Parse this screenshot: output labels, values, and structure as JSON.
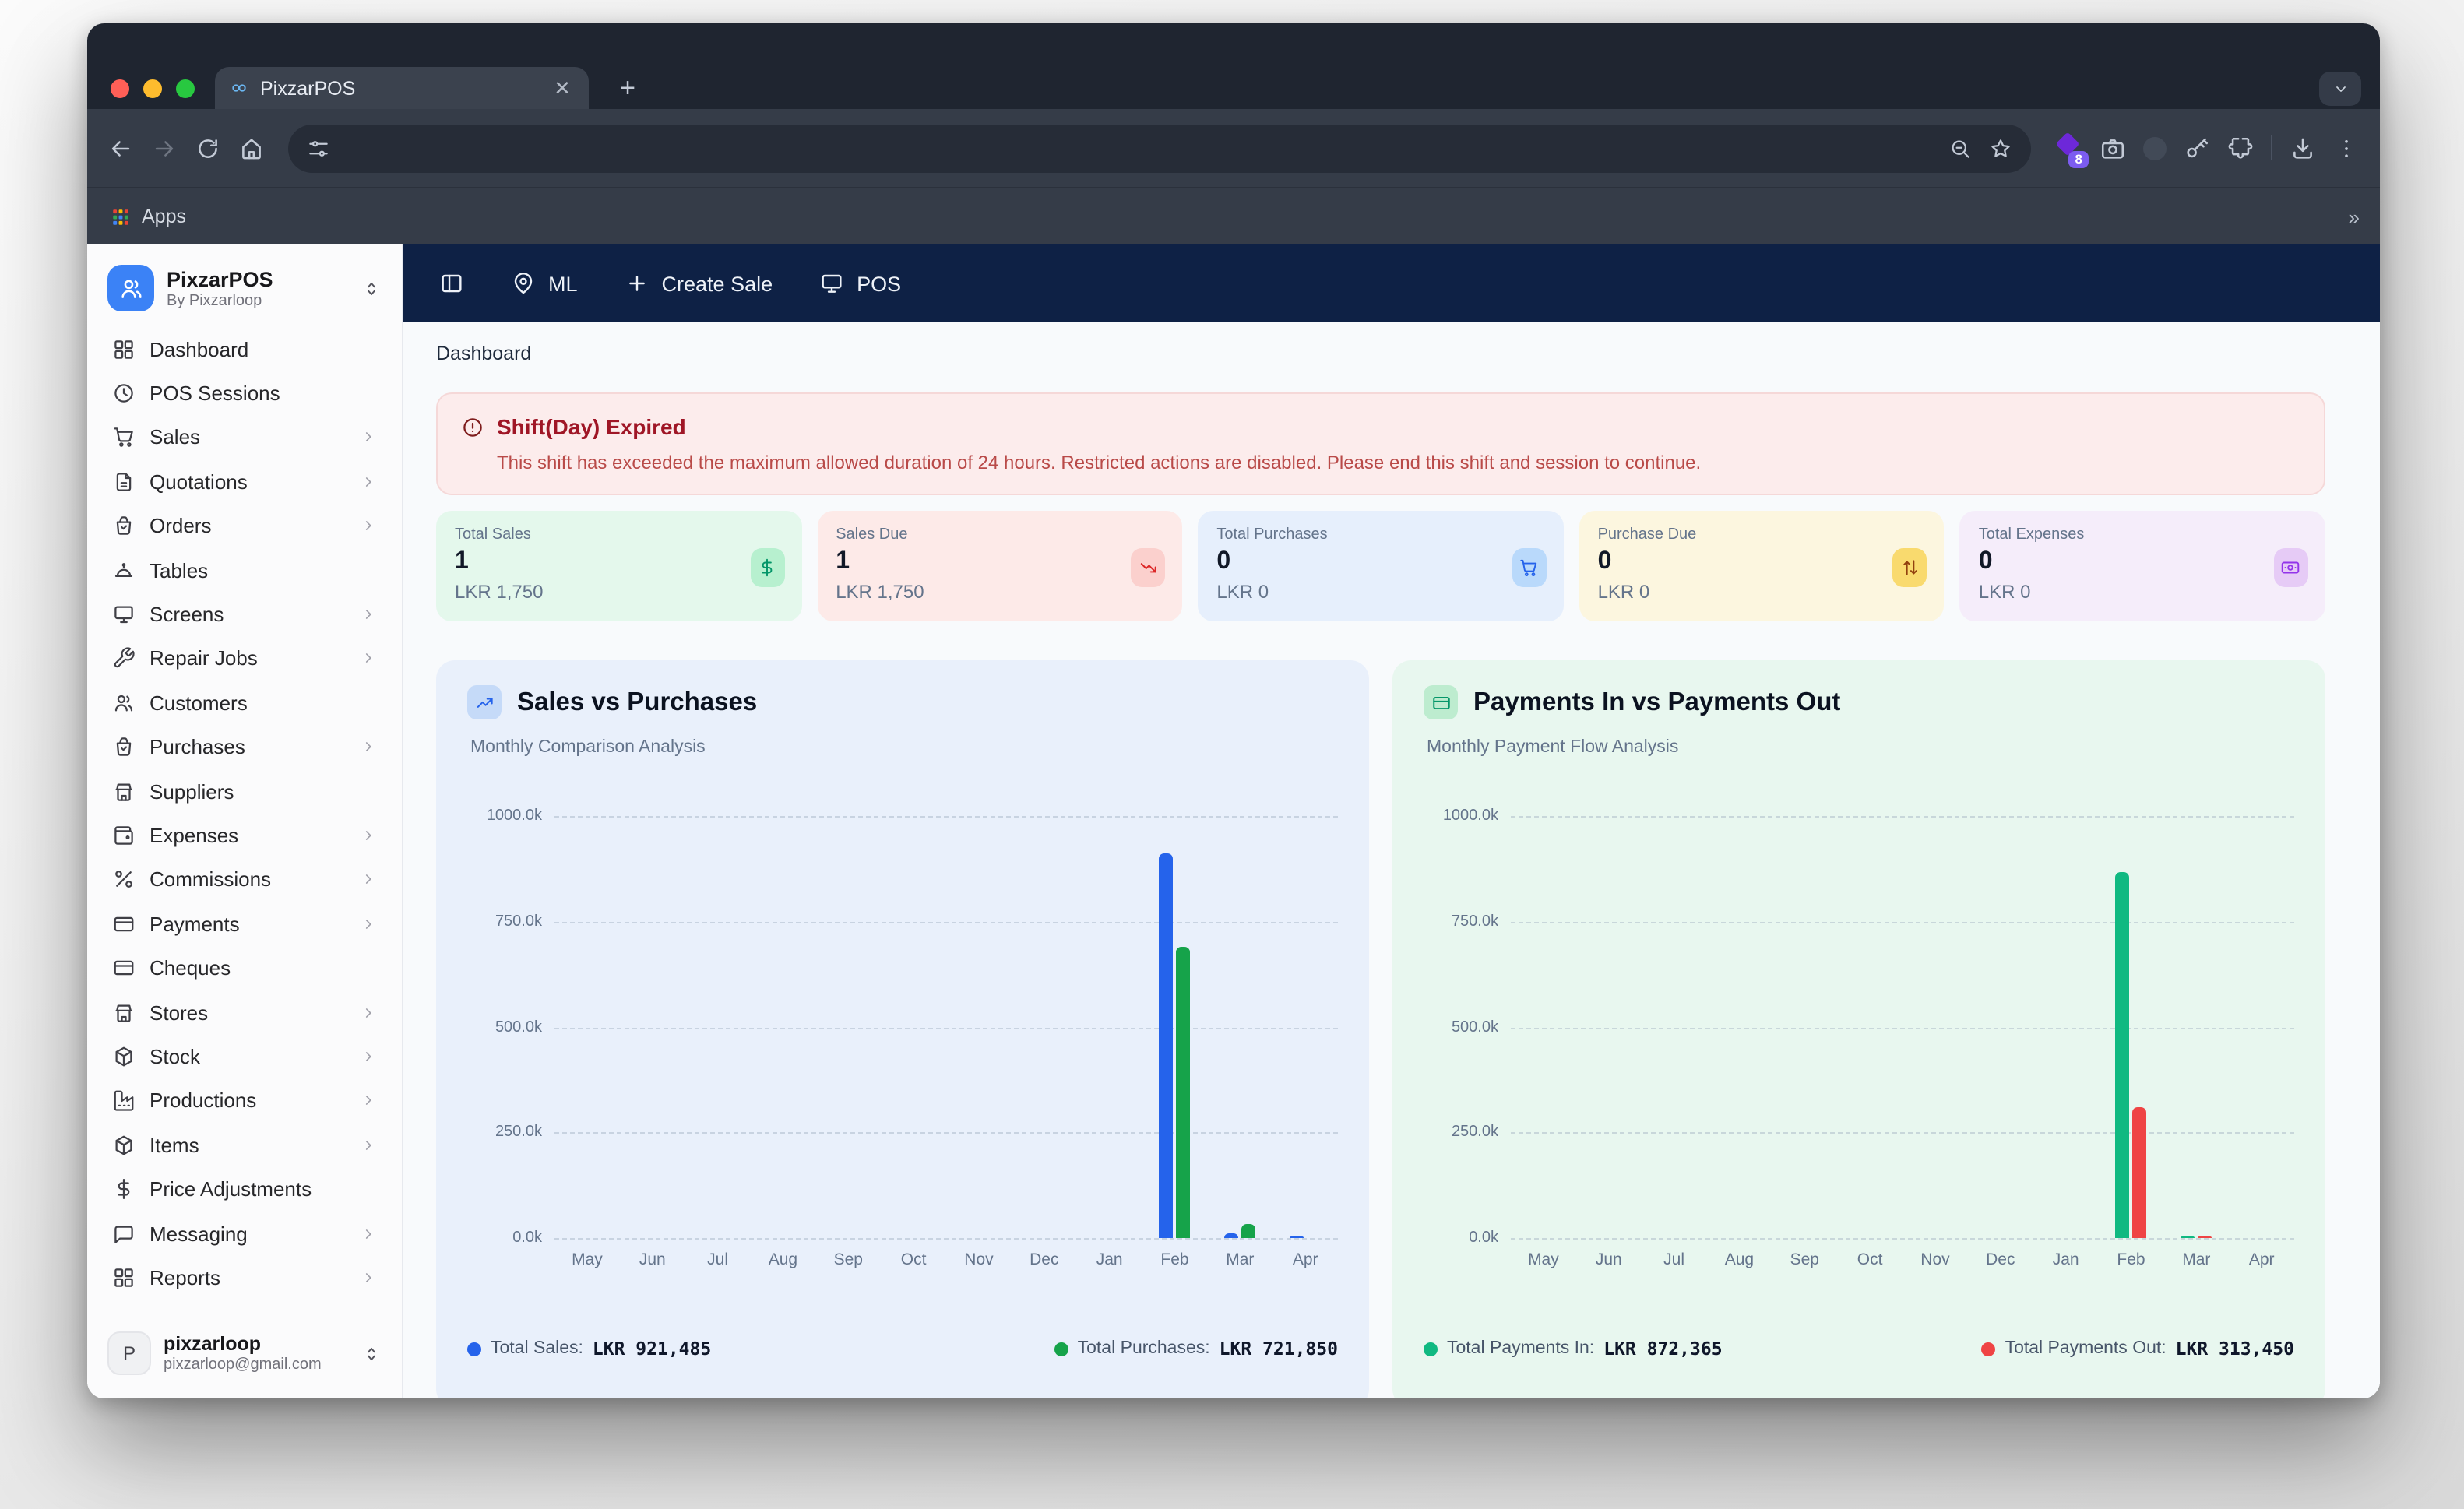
{
  "browser": {
    "tab_title": "PixzarPOS",
    "extension_badge": "8",
    "bookmarks_apps_label": "Apps"
  },
  "app": {
    "sidebar": {
      "brand": {
        "name": "PixzarPOS",
        "byline": "By Pixzarloop"
      },
      "items": [
        {
          "label": "Dashboard",
          "icon": "dashboard-icon",
          "chevron": false
        },
        {
          "label": "POS Sessions",
          "icon": "clock-icon",
          "chevron": false
        },
        {
          "label": "Sales",
          "icon": "cart-icon",
          "chevron": true
        },
        {
          "label": "Quotations",
          "icon": "document-icon",
          "chevron": true
        },
        {
          "label": "Orders",
          "icon": "bag-check-icon",
          "chevron": true
        },
        {
          "label": "Tables",
          "icon": "cloche-icon",
          "chevron": false
        },
        {
          "label": "Screens",
          "icon": "monitor-icon",
          "chevron": true
        },
        {
          "label": "Repair Jobs",
          "icon": "wrench-icon",
          "chevron": true
        },
        {
          "label": "Customers",
          "icon": "users-icon",
          "chevron": false
        },
        {
          "label": "Purchases",
          "icon": "bag-check-icon",
          "chevron": true
        },
        {
          "label": "Suppliers",
          "icon": "store-icon",
          "chevron": false
        },
        {
          "label": "Expenses",
          "icon": "wallet-icon",
          "chevron": true
        },
        {
          "label": "Commissions",
          "icon": "percent-icon",
          "chevron": true
        },
        {
          "label": "Payments",
          "icon": "card-icon",
          "chevron": true
        },
        {
          "label": "Cheques",
          "icon": "card-icon",
          "chevron": false
        },
        {
          "label": "Stores",
          "icon": "store-icon",
          "chevron": true
        },
        {
          "label": "Stock",
          "icon": "box-icon",
          "chevron": true
        },
        {
          "label": "Productions",
          "icon": "factory-icon",
          "chevron": true
        },
        {
          "label": "Items",
          "icon": "box-icon",
          "chevron": true
        },
        {
          "label": "Price Adjustments",
          "icon": "dollar-icon",
          "chevron": false
        },
        {
          "label": "Messaging",
          "icon": "chat-icon",
          "chevron": true
        },
        {
          "label": "Reports",
          "icon": "dashboard-icon",
          "chevron": true
        }
      ],
      "user": {
        "initial": "P",
        "name": "pixzarloop",
        "email": "pixzarloop@gmail.com"
      }
    },
    "navbar": {
      "location_label": "ML",
      "create_sale_label": "Create Sale",
      "pos_label": "POS"
    },
    "breadcrumb": "Dashboard",
    "alert": {
      "title": "Shift(Day) Expired",
      "message": "This shift has exceeded the maximum allowed duration of 24 hours. Restricted actions are disabled. Please end this shift and session to continue."
    },
    "stats": [
      {
        "label": "Total Sales",
        "value": "1",
        "amount": "LKR 1,750",
        "icon": "dollar-icon",
        "bg": "#e4f8ec",
        "badge_bg": "#b7f0cf",
        "icon_color": "#059669"
      },
      {
        "label": "Sales Due",
        "value": "1",
        "amount": "LKR 1,750",
        "icon": "trend-down-icon",
        "bg": "#fdeae8",
        "badge_bg": "#fbd0cd",
        "icon_color": "#dc2626"
      },
      {
        "label": "Total Purchases",
        "value": "0",
        "amount": "LKR 0",
        "icon": "cart-icon",
        "bg": "#e6effc",
        "badge_bg": "#b9d9fb",
        "icon_color": "#2563eb"
      },
      {
        "label": "Purchase Due",
        "value": "0",
        "amount": "LKR 0",
        "icon": "arrows-up-down-icon",
        "bg": "#fcf6df",
        "badge_bg": "#f9da6e",
        "icon_color": "#92400e"
      },
      {
        "label": "Total Expenses",
        "value": "0",
        "amount": "LKR 0",
        "icon": "banknote-icon",
        "bg": "#f5edfa",
        "badge_bg": "#e6cbf6",
        "icon_color": "#9333ea"
      }
    ]
  },
  "chart_data": [
    {
      "type": "bar",
      "title": "Sales vs Purchases",
      "subtitle": "Monthly Comparison Analysis",
      "header_icon": "trend-up-icon",
      "card_bg": "#e9f0fb",
      "icon_bg": "#c5daf8",
      "icon_color": "#2563eb",
      "categories": [
        "May",
        "Jun",
        "Jul",
        "Aug",
        "Sep",
        "Oct",
        "Nov",
        "Dec",
        "Jan",
        "Feb",
        "Mar",
        "Apr"
      ],
      "series": [
        {
          "name": "Total Sales",
          "color": "#2563eb",
          "values": [
            0,
            0,
            0,
            0,
            0,
            0,
            0,
            0,
            0,
            910000,
            10000,
            1485
          ],
          "total_label": "LKR 921,485"
        },
        {
          "name": "Total Purchases",
          "color": "#16a34a",
          "values": [
            0,
            0,
            0,
            0,
            0,
            0,
            0,
            0,
            0,
            690000,
            31850,
            0
          ],
          "total_label": "LKR 721,850"
        }
      ],
      "ylim": [
        0,
        1000000
      ],
      "yticks": [
        "1000.0k",
        "750.0k",
        "500.0k",
        "250.0k",
        "0.0k"
      ],
      "grid": "dashed",
      "legend_position": "bottom"
    },
    {
      "type": "bar",
      "title": "Payments In vs Payments Out",
      "subtitle": "Monthly Payment Flow Analysis",
      "header_icon": "card-icon",
      "card_bg": "#e8f7ef",
      "icon_bg": "#bdeccf",
      "icon_color": "#059669",
      "categories": [
        "May",
        "Jun",
        "Jul",
        "Aug",
        "Sep",
        "Oct",
        "Nov",
        "Dec",
        "Jan",
        "Feb",
        "Mar",
        "Apr"
      ],
      "series": [
        {
          "name": "Total Payments In",
          "color": "#10b981",
          "values": [
            0,
            0,
            0,
            0,
            0,
            0,
            0,
            0,
            0,
            867365,
            5000,
            0
          ],
          "total_label": "LKR 872,365"
        },
        {
          "name": "Total Payments Out",
          "color": "#ef4444",
          "values": [
            0,
            0,
            0,
            0,
            0,
            0,
            0,
            0,
            0,
            310450,
            3000,
            0
          ],
          "total_label": "LKR 313,450"
        }
      ],
      "ylim": [
        0,
        1000000
      ],
      "yticks": [
        "1000.0k",
        "750.0k",
        "500.0k",
        "250.0k",
        "0.0k"
      ],
      "grid": "dashed",
      "legend_position": "bottom"
    }
  ]
}
